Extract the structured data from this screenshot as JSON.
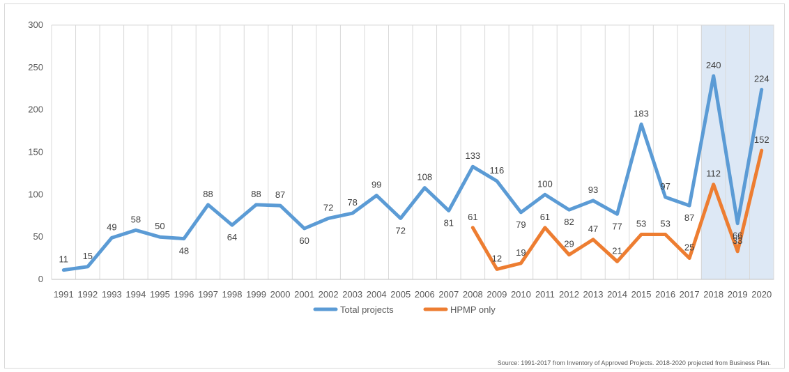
{
  "chart_data": {
    "type": "line",
    "categories": [
      "1991",
      "1992",
      "1993",
      "1994",
      "1995",
      "1996",
      "1997",
      "1998",
      "1999",
      "2000",
      "2001",
      "2002",
      "2003",
      "2004",
      "2005",
      "2006",
      "2007",
      "2008",
      "2009",
      "2010",
      "2011",
      "2012",
      "2013",
      "2014",
      "2015",
      "2016",
      "2017",
      "2018",
      "2019",
      "2020"
    ],
    "series": [
      {
        "name": "Total projects",
        "color": "#5b9bd5",
        "values": [
          11,
          15,
          49,
          58,
          50,
          48,
          88,
          64,
          88,
          87,
          60,
          72,
          78,
          99,
          72,
          108,
          81,
          133,
          116,
          79,
          100,
          82,
          93,
          77,
          183,
          97,
          87,
          240,
          66,
          224
        ]
      },
      {
        "name": "HPMP only",
        "color": "#ed7d31",
        "values": [
          null,
          null,
          null,
          null,
          null,
          null,
          null,
          null,
          null,
          null,
          null,
          null,
          null,
          null,
          null,
          null,
          null,
          61,
          12,
          19,
          61,
          29,
          47,
          21,
          53,
          53,
          25,
          112,
          33,
          152
        ]
      }
    ],
    "ylim": [
      0,
      300
    ],
    "yticks": [
      0,
      50,
      100,
      150,
      200,
      250,
      300
    ],
    "grid": "vertical",
    "legend": "bottom",
    "highlight_categories": [
      "2018",
      "2019",
      "2020"
    ],
    "highlight_color": "#dde8f5",
    "source": "Source: 1991-2017 from Inventory of Approved Projects. 2018-2020 projected from Business Plan."
  }
}
